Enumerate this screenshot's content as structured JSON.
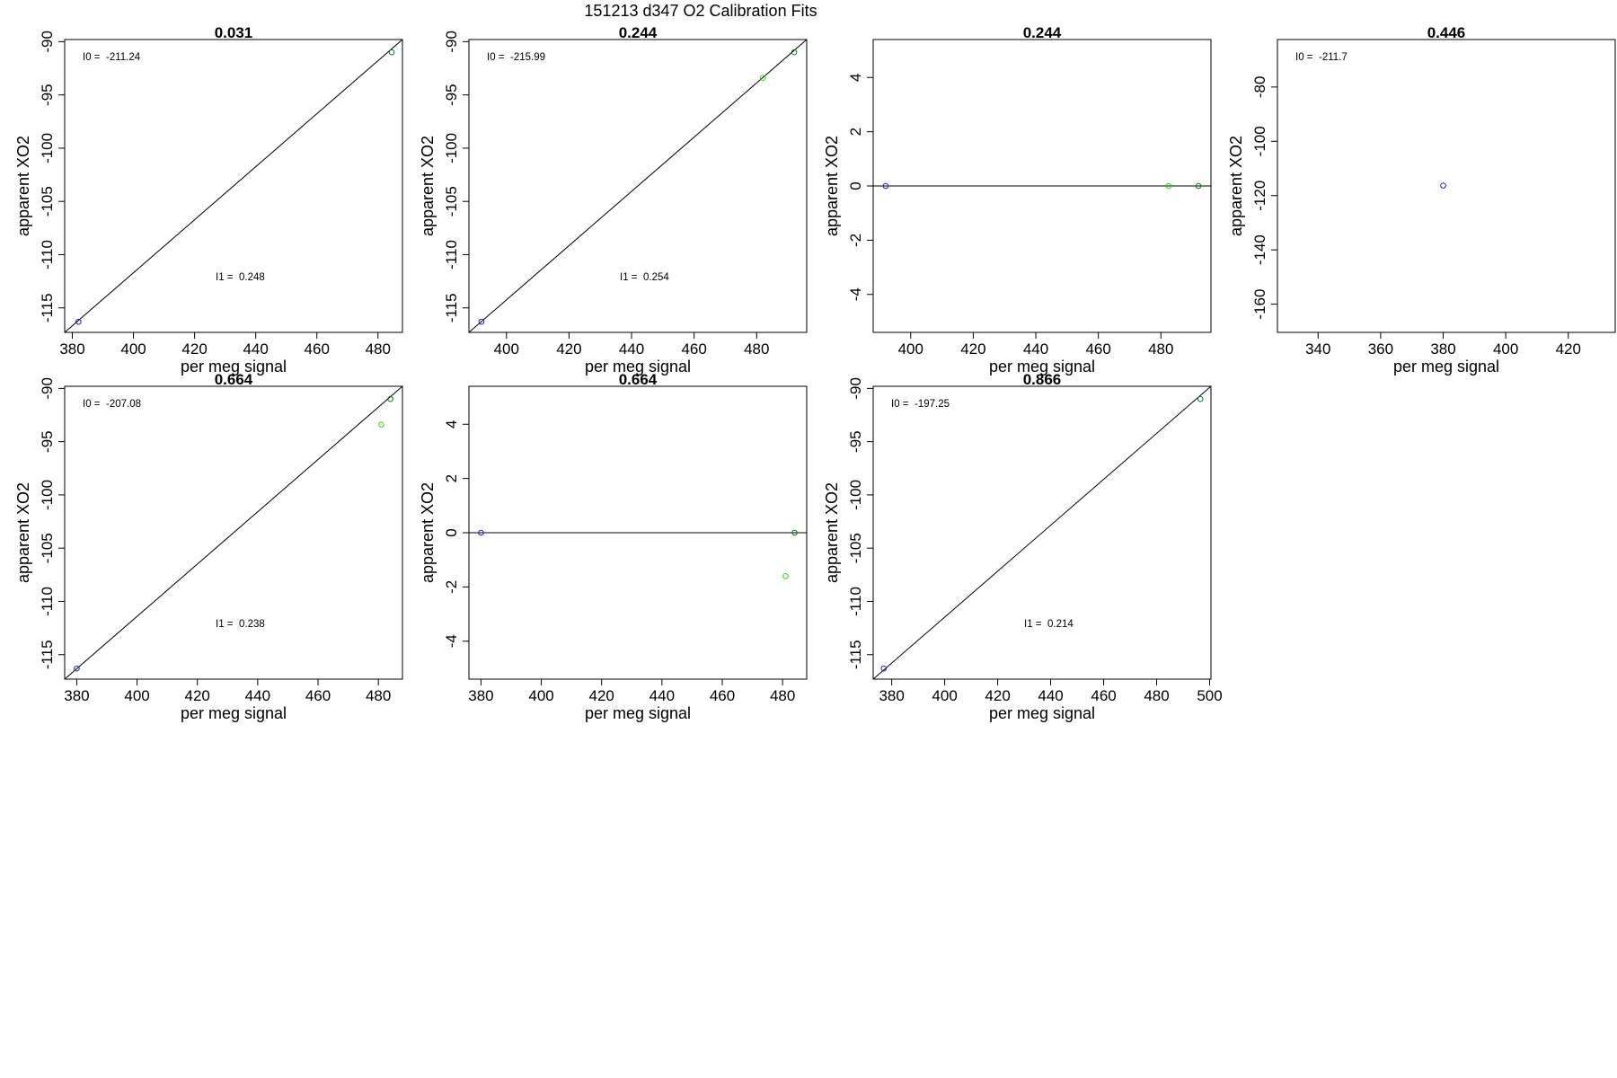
{
  "figure_title": "151213   d347   O2 Calibration Fits",
  "colors": {
    "frame": "#000000",
    "blue": "#2222cc",
    "green": "#22dd22",
    "darkgreen": "#117711",
    "line": "#000000"
  },
  "chart_data": [
    {
      "type": "scatter",
      "title": "0.031",
      "xlabel": "per meg signal",
      "ylabel": "apparent XO2",
      "xlim": [
        377.5,
        488
      ],
      "ylim": [
        -117.3,
        -89.8
      ],
      "xticks": [
        380,
        400,
        420,
        440,
        460,
        480
      ],
      "yticks": [
        -90,
        -95,
        -100,
        -105,
        -110,
        -115
      ],
      "points": [
        {
          "x": 382,
          "y": -116.3,
          "color": "blue"
        },
        {
          "x": 484.5,
          "y": -91.0,
          "color": "darkgreen"
        }
      ],
      "fit_line": {
        "x0": 377.5,
        "y0": -117.3,
        "x1": 488,
        "y1": -89.8
      },
      "annotations": {
        "I0_label": "I0 =",
        "I0_value": "-211.24",
        "I1_label": "I1 =",
        "I1_value": "0.248"
      }
    },
    {
      "type": "scatter",
      "title": "0.244",
      "xlabel": "per meg signal",
      "ylabel": "apparent XO2",
      "xlim": [
        388,
        496
      ],
      "ylim": [
        -117.3,
        -89.8
      ],
      "xticks": [
        400,
        420,
        440,
        460,
        480
      ],
      "yticks": [
        -90,
        -95,
        -100,
        -105,
        -110,
        -115
      ],
      "points": [
        {
          "x": 392,
          "y": -116.3,
          "color": "blue"
        },
        {
          "x": 482,
          "y": -93.4,
          "color": "green"
        },
        {
          "x": 492,
          "y": -91.0,
          "color": "darkgreen"
        }
      ],
      "fit_line": {
        "x0": 388,
        "y0": -117.3,
        "x1": 496,
        "y1": -89.8
      },
      "annotations": {
        "I0_label": "I0 =",
        "I0_value": "-215.99",
        "I1_label": "I1 =",
        "I1_value": "0.254"
      }
    },
    {
      "type": "scatter",
      "title": "0.244",
      "xlabel": "per meg signal",
      "ylabel": "apparent XO2",
      "xlim": [
        388,
        496
      ],
      "ylim": [
        -5.4,
        5.4
      ],
      "xticks": [
        400,
        420,
        440,
        460,
        480
      ],
      "yticks": [
        4,
        2,
        0,
        -2,
        -4
      ],
      "points": [
        {
          "x": 392,
          "y": 0,
          "color": "blue"
        },
        {
          "x": 482.5,
          "y": 0,
          "color": "green"
        },
        {
          "x": 492,
          "y": 0,
          "color": "darkgreen"
        }
      ],
      "hline": 0,
      "annotations": {}
    },
    {
      "type": "scatter",
      "title": "0.446",
      "xlabel": "per meg signal",
      "ylabel": "apparent XO2",
      "xlim": [
        327,
        435
      ],
      "ylim": [
        -170.4,
        -62.5
      ],
      "xticks": [
        340,
        360,
        380,
        400,
        420
      ],
      "yticks": [
        -80,
        -100,
        -120,
        -140,
        -160
      ],
      "points": [
        {
          "x": 380,
          "y": -116.3,
          "color": "blue"
        }
      ],
      "annotations": {
        "I0_label": "I0 =",
        "I0_value": "-211.7"
      }
    },
    {
      "type": "scatter",
      "title": "0.664",
      "xlabel": "per meg signal",
      "ylabel": "apparent XO2",
      "xlim": [
        376,
        488
      ],
      "ylim": [
        -117.3,
        -89.8
      ],
      "xticks": [
        380,
        400,
        420,
        440,
        460,
        480
      ],
      "yticks": [
        -90,
        -95,
        -100,
        -105,
        -110,
        -115
      ],
      "points": [
        {
          "x": 380,
          "y": -116.3,
          "color": "blue"
        },
        {
          "x": 481,
          "y": -93.4,
          "color": "green"
        },
        {
          "x": 484,
          "y": -91.0,
          "color": "darkgreen"
        }
      ],
      "fit_line": {
        "x0": 376,
        "y0": -117.3,
        "x1": 488,
        "y1": -89.8
      },
      "annotations": {
        "I0_label": "I0 =",
        "I0_value": "-207.08",
        "I1_label": "I1 =",
        "I1_value": "0.238"
      }
    },
    {
      "type": "scatter",
      "title": "0.664",
      "xlabel": "per meg signal",
      "ylabel": "apparent XO2",
      "xlim": [
        376,
        488
      ],
      "ylim": [
        -5.4,
        5.4
      ],
      "xticks": [
        380,
        400,
        420,
        440,
        460,
        480
      ],
      "yticks": [
        4,
        2,
        0,
        -2,
        -4
      ],
      "points": [
        {
          "x": 380,
          "y": 0,
          "color": "blue"
        },
        {
          "x": 481,
          "y": -1.6,
          "color": "green"
        },
        {
          "x": 484,
          "y": 0,
          "color": "darkgreen"
        }
      ],
      "hline": 0,
      "annotations": {}
    },
    {
      "type": "scatter",
      "title": "0.866",
      "xlabel": "per meg signal",
      "ylabel": "apparent XO2",
      "xlim": [
        373,
        500.5
      ],
      "ylim": [
        -117.3,
        -89.8
      ],
      "xticks": [
        380,
        400,
        420,
        440,
        460,
        480,
        500
      ],
      "yticks": [
        -90,
        -95,
        -100,
        -105,
        -110,
        -115
      ],
      "points": [
        {
          "x": 377,
          "y": -116.3,
          "color": "blue"
        },
        {
          "x": 496.5,
          "y": -91.0,
          "color": "darkgreen"
        }
      ],
      "fit_line": {
        "x0": 373,
        "y0": -117.3,
        "x1": 500.5,
        "y1": -89.8
      },
      "annotations": {
        "I0_label": "I0 =",
        "I0_value": "-197.25",
        "I1_label": "I1 =",
        "I1_value": "0.214"
      }
    }
  ]
}
